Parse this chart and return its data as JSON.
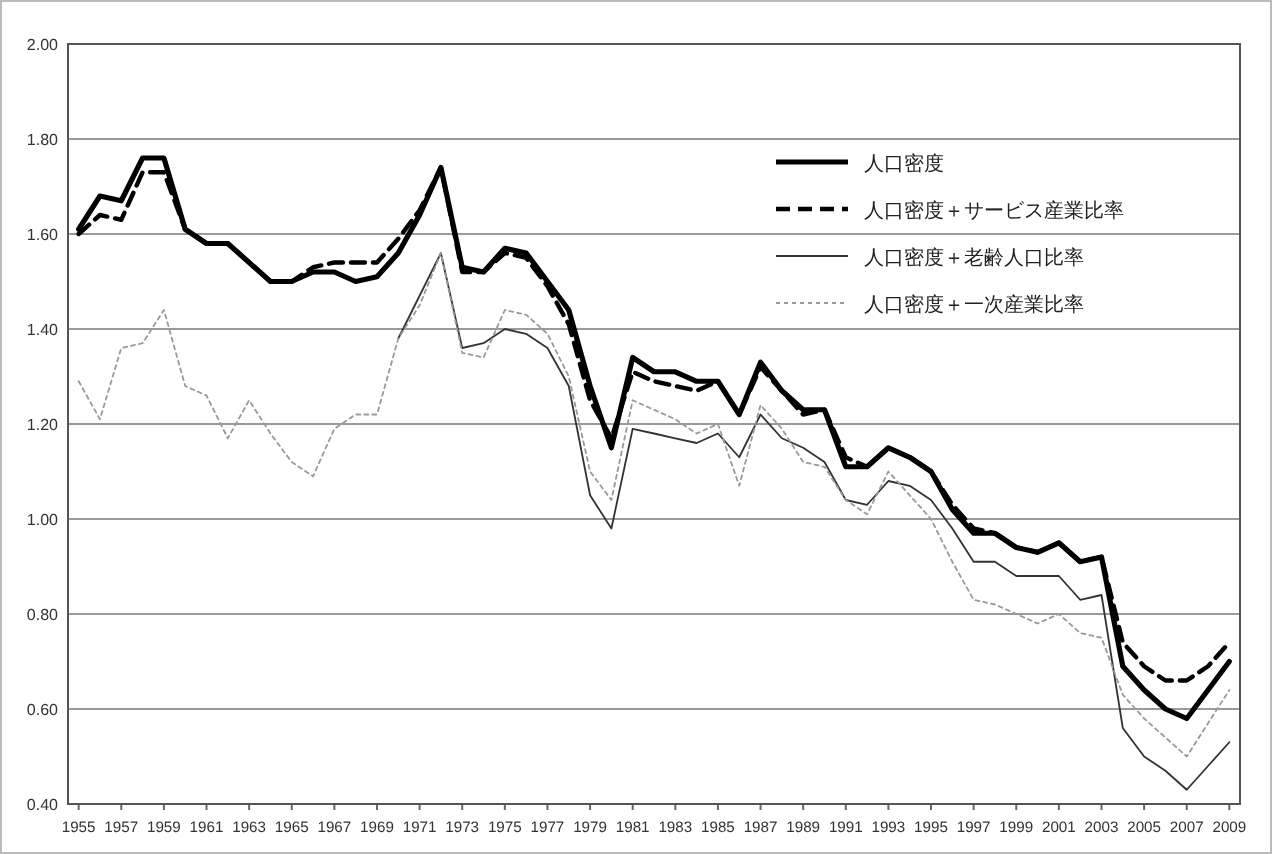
{
  "chart_data": {
    "type": "line",
    "x": [
      1955,
      1956,
      1957,
      1958,
      1959,
      1960,
      1961,
      1962,
      1963,
      1964,
      1965,
      1966,
      1967,
      1968,
      1969,
      1970,
      1971,
      1972,
      1973,
      1974,
      1975,
      1976,
      1977,
      1978,
      1979,
      1980,
      1981,
      1982,
      1983,
      1984,
      1985,
      1986,
      1987,
      1988,
      1989,
      1990,
      1991,
      1992,
      1993,
      1994,
      1995,
      1996,
      1997,
      1998,
      1999,
      2000,
      2001,
      2002,
      2003,
      2004,
      2005,
      2006,
      2007,
      2008,
      2009
    ],
    "series": [
      {
        "name": "人口密度",
        "color": "#000000",
        "line_style": "solid",
        "values": [
          1.61,
          1.68,
          1.67,
          1.76,
          1.76,
          1.61,
          1.58,
          1.58,
          1.54,
          1.5,
          1.5,
          1.52,
          1.52,
          1.5,
          1.51,
          1.56,
          1.64,
          1.74,
          1.53,
          1.52,
          1.57,
          1.56,
          1.5,
          1.44,
          1.28,
          1.15,
          1.34,
          1.31,
          1.31,
          1.29,
          1.29,
          1.22,
          1.33,
          1.27,
          1.23,
          1.23,
          1.11,
          1.11,
          1.15,
          1.13,
          1.1,
          1.02,
          0.97,
          0.97,
          0.94,
          0.93,
          0.95,
          0.91,
          0.92,
          0.69,
          0.64,
          0.6,
          0.58,
          0.64,
          0.7
        ]
      },
      {
        "name": "人口密度＋サービス産業比率",
        "color": "#000000",
        "line_style": "dashed",
        "values": [
          1.6,
          1.64,
          1.63,
          1.73,
          1.73,
          1.61,
          1.58,
          1.58,
          1.54,
          1.5,
          1.5,
          1.53,
          1.54,
          1.54,
          1.54,
          1.59,
          1.65,
          1.74,
          1.52,
          1.52,
          1.56,
          1.55,
          1.49,
          1.41,
          1.25,
          1.17,
          1.31,
          1.29,
          1.28,
          1.27,
          1.29,
          1.22,
          1.32,
          1.27,
          1.22,
          1.23,
          1.13,
          1.11,
          1.15,
          1.13,
          1.1,
          1.03,
          0.98,
          0.97,
          0.94,
          0.93,
          0.95,
          0.91,
          0.92,
          0.74,
          0.69,
          0.66,
          0.66,
          0.69,
          0.74
        ]
      },
      {
        "name": "人口密度＋老齢人口比率",
        "color": "#333333",
        "line_style": "solid",
        "values": [
          null,
          null,
          null,
          null,
          null,
          null,
          null,
          null,
          null,
          null,
          null,
          null,
          null,
          null,
          null,
          1.38,
          1.47,
          1.56,
          1.36,
          1.37,
          1.4,
          1.39,
          1.36,
          1.28,
          1.05,
          0.98,
          1.19,
          1.18,
          1.17,
          1.16,
          1.18,
          1.13,
          1.22,
          1.17,
          1.15,
          1.12,
          1.04,
          1.03,
          1.08,
          1.07,
          1.04,
          0.98,
          0.91,
          0.91,
          0.88,
          0.88,
          0.88,
          0.83,
          0.84,
          0.56,
          0.5,
          0.47,
          0.43,
          0.48,
          0.53
        ]
      },
      {
        "name": "人口密度＋一次産業比率",
        "color": "#999999",
        "line_style": "dotted",
        "values": [
          1.29,
          1.21,
          1.36,
          1.37,
          1.44,
          1.28,
          1.26,
          1.17,
          1.25,
          1.18,
          1.12,
          1.09,
          1.19,
          1.22,
          1.22,
          1.38,
          1.45,
          1.56,
          1.35,
          1.34,
          1.44,
          1.43,
          1.39,
          1.3,
          1.1,
          1.04,
          1.25,
          1.23,
          1.21,
          1.18,
          1.2,
          1.07,
          1.24,
          1.19,
          1.12,
          1.11,
          1.04,
          1.01,
          1.1,
          1.05,
          1.0,
          0.91,
          0.83,
          0.82,
          0.8,
          0.78,
          0.8,
          0.76,
          0.75,
          0.63,
          0.58,
          0.54,
          0.5,
          0.57,
          0.64
        ]
      }
    ],
    "xlim": [
      1954.5,
      2009.5
    ],
    "xticks": [
      1955,
      1957,
      1959,
      1961,
      1963,
      1965,
      1967,
      1969,
      1971,
      1973,
      1975,
      1977,
      1979,
      1981,
      1983,
      1985,
      1987,
      1989,
      1991,
      1993,
      1995,
      1997,
      1999,
      2001,
      2003,
      2005,
      2007,
      2009
    ],
    "ylim": [
      0.4,
      2.0
    ],
    "yticks": [
      {
        "value": 0.4,
        "label": "0.40"
      },
      {
        "value": 0.6,
        "label": "0.60"
      },
      {
        "value": 0.8,
        "label": "0.80"
      },
      {
        "value": 1.0,
        "label": "1.00"
      },
      {
        "value": 1.2,
        "label": "1.20"
      },
      {
        "value": 1.4,
        "label": "1.40"
      },
      {
        "value": 1.6,
        "label": "1.60"
      },
      {
        "value": 1.8,
        "label": "1.80"
      },
      {
        "value": 2.0,
        "label": "2.00"
      }
    ],
    "grid": "y",
    "legend": "top right",
    "marker": "none"
  }
}
